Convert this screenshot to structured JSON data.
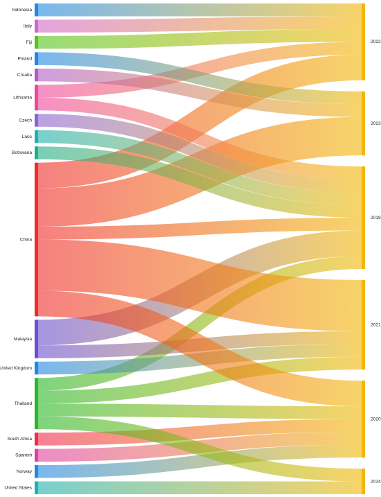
{
  "chart_data": {
    "type": "sankey",
    "title": "",
    "countries": [
      {
        "name": "Indonesia",
        "color": "#1e88e5"
      },
      {
        "name": "Italy",
        "color": "#d266c8"
      },
      {
        "name": "Fiji",
        "color": "#52c41a"
      },
      {
        "name": "Poland",
        "color": "#1e88e5"
      },
      {
        "name": "Croatia",
        "color": "#b05cc8"
      },
      {
        "name": "Lithuania",
        "color": "#f0469e"
      },
      {
        "name": "Czech",
        "color": "#8a63d2"
      },
      {
        "name": "Laos",
        "color": "#1fb0b0"
      },
      {
        "name": "Botswana",
        "color": "#1fae8a"
      },
      {
        "name": "China",
        "color": "#ef2b2b"
      },
      {
        "name": "Malaysia",
        "color": "#6a4dd0"
      },
      {
        "name": "United Kingdom",
        "color": "#1e88e5"
      },
      {
        "name": "Thailand",
        "color": "#28b828"
      },
      {
        "name": "South Africa",
        "color": "#ef2b4b"
      },
      {
        "name": "Spanish",
        "color": "#e040a0"
      },
      {
        "name": "Norway",
        "color": "#1e88e5"
      },
      {
        "name": "United States",
        "color": "#1fb0b0"
      }
    ],
    "years": [
      {
        "name": "2022",
        "color": "#f2b705"
      },
      {
        "name": "2023",
        "color": "#f2b705"
      },
      {
        "name": "2019",
        "color": "#f2b705"
      },
      {
        "name": "2021",
        "color": "#f2b705"
      },
      {
        "name": "2020",
        "color": "#f2b705"
      },
      {
        "name": "2024",
        "color": "#f2b705"
      }
    ],
    "links": [
      {
        "source": "Indonesia",
        "target": "2022",
        "value": 1
      },
      {
        "source": "Italy",
        "target": "2022",
        "value": 1
      },
      {
        "source": "Fiji",
        "target": "2022",
        "value": 1
      },
      {
        "source": "Lithuania",
        "target": "2022",
        "value": 1
      },
      {
        "source": "China",
        "target": "2022",
        "value": 2
      },
      {
        "source": "Poland",
        "target": "2023",
        "value": 1
      },
      {
        "source": "Croatia",
        "target": "2023",
        "value": 1
      },
      {
        "source": "China",
        "target": "2023",
        "value": 3
      },
      {
        "source": "Lithuania",
        "target": "2019",
        "value": 1
      },
      {
        "source": "Czech",
        "target": "2019",
        "value": 1
      },
      {
        "source": "Laos",
        "target": "2019",
        "value": 1
      },
      {
        "source": "Botswana",
        "target": "2019",
        "value": 1
      },
      {
        "source": "China",
        "target": "2019",
        "value": 1
      },
      {
        "source": "Malaysia",
        "target": "2019",
        "value": 2
      },
      {
        "source": "Thailand",
        "target": "2019",
        "value": 1
      },
      {
        "source": "China",
        "target": "2021",
        "value": 4
      },
      {
        "source": "Malaysia",
        "target": "2021",
        "value": 1
      },
      {
        "source": "United Kingdom",
        "target": "2021",
        "value": 1
      },
      {
        "source": "Thailand",
        "target": "2021",
        "value": 1
      },
      {
        "source": "China",
        "target": "2020",
        "value": 2
      },
      {
        "source": "Thailand",
        "target": "2020",
        "value": 1
      },
      {
        "source": "South Africa",
        "target": "2020",
        "value": 1
      },
      {
        "source": "Spanish",
        "target": "2020",
        "value": 1
      },
      {
        "source": "Norway",
        "target": "2020",
        "value": 1
      },
      {
        "source": "Thailand",
        "target": "2024",
        "value": 1
      },
      {
        "source": "United States",
        "target": "2024",
        "value": 1
      }
    ]
  }
}
